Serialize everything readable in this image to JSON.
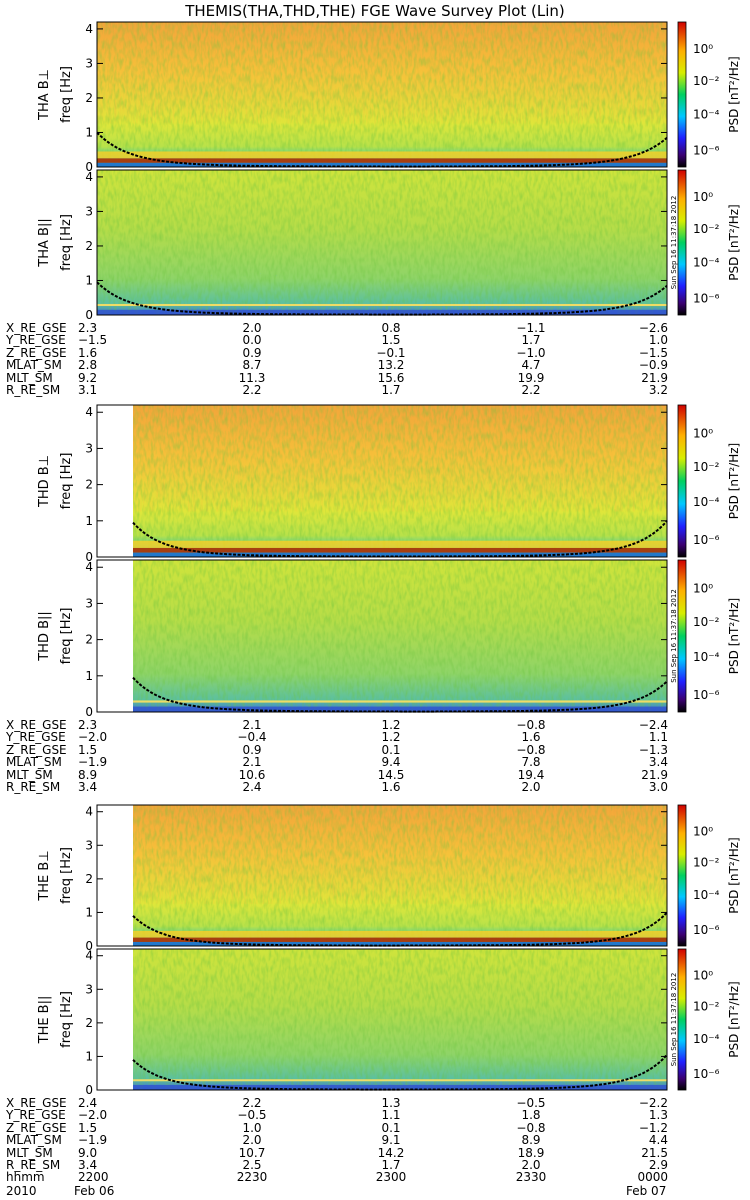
{
  "title": "THEMIS(THA,THD,THE) FGE Wave Survey Plot (Lin)",
  "colorbar": {
    "label": "PSD [nT²/Hz]",
    "ticks": [
      "10⁰",
      "10⁻²",
      "10⁻⁴",
      "10⁻⁶"
    ]
  },
  "stamp": "Sun Sep 16 11:37:18 2012",
  "panel_ylabel": "freq [Hz]",
  "yticks": [
    "0",
    "1",
    "2",
    "3",
    "4"
  ],
  "chart_data": [
    {
      "type": "heatmap",
      "panel": "THA B⊥",
      "ylabel": "freq [Hz]",
      "ylim": [
        0,
        4.2
      ],
      "yticks": [
        0,
        1,
        2,
        3,
        4
      ],
      "colorscale": "log PSD 1e-7 .. 1e1 nT^2/Hz",
      "gyro_curve": {
        "left_freq": 1.0,
        "right_freq": 0.85,
        "min_time_frac": 0.5
      }
    },
    {
      "type": "heatmap",
      "panel": "THA B||",
      "ylabel": "freq [Hz]",
      "ylim": [
        0,
        4.2
      ],
      "yticks": [
        0,
        1,
        2,
        3,
        4
      ],
      "gyro_curve": {
        "left_freq": 0.95,
        "right_freq": 0.85
      }
    },
    {
      "type": "heatmap",
      "panel": "THD B⊥",
      "ylabel": "freq [Hz]",
      "ylim": [
        0,
        4.2
      ],
      "yticks": [
        0,
        1,
        2,
        3,
        4
      ],
      "data_start_hhmm": "2206",
      "gyro_curve": {
        "left_freq": 0.95,
        "right_freq": 1.0
      }
    },
    {
      "type": "heatmap",
      "panel": "THD B||",
      "ylabel": "freq [Hz]",
      "ylim": [
        0,
        4.2
      ],
      "yticks": [
        0,
        1,
        2,
        3,
        4
      ],
      "data_start_hhmm": "2206",
      "gyro_curve": {
        "left_freq": 0.95,
        "right_freq": 0.85
      }
    },
    {
      "type": "heatmap",
      "panel": "THE B⊥",
      "ylabel": "freq [Hz]",
      "ylim": [
        0,
        4.2
      ],
      "yticks": [
        0,
        1,
        2,
        3,
        4
      ],
      "data_start_hhmm": "2206",
      "gyro_curve": {
        "left_freq": 0.9,
        "right_freq": 1.0
      }
    },
    {
      "type": "heatmap",
      "panel": "THE B||",
      "ylabel": "freq [Hz]",
      "ylim": [
        0,
        4.2
      ],
      "yticks": [
        0,
        1,
        2,
        3,
        4
      ],
      "data_start_hhmm": "2206",
      "gyro_curve": {
        "left_freq": 0.9,
        "right_freq": 1.05
      }
    }
  ],
  "probes": [
    {
      "labels": {
        "perp": "THA B⊥",
        "para": "THA B||"
      },
      "ephemeris": [
        {
          "name": "X_RE_GSE",
          "values": [
            "2.3",
            "2.0",
            "0.8",
            "−1.1",
            "−2.6"
          ]
        },
        {
          "name": "Y_RE_GSE",
          "values": [
            "−1.5",
            "0.0",
            "1.5",
            "1.7",
            "1.0"
          ]
        },
        {
          "name": "Z_RE_GSE",
          "values": [
            "1.6",
            "0.9",
            "−0.1",
            "−1.0",
            "−1.5"
          ]
        },
        {
          "name": "MLAT_SM",
          "values": [
            "2.8",
            "8.7",
            "13.2",
            "4.7",
            "−0.9"
          ]
        },
        {
          "name": "MLT_SM",
          "values": [
            "9.2",
            "11.3",
            "15.6",
            "19.9",
            "21.9"
          ]
        },
        {
          "name": "R_RE_SM",
          "values": [
            "3.1",
            "2.2",
            "1.7",
            "2.2",
            "3.2"
          ]
        }
      ]
    },
    {
      "labels": {
        "perp": "THD B⊥",
        "para": "THD B||"
      },
      "ephemeris": [
        {
          "name": "X_RE_GSE",
          "values": [
            "2.3",
            "2.1",
            "1.2",
            "−0.8",
            "−2.4"
          ]
        },
        {
          "name": "Y_RE_GSE",
          "values": [
            "−2.0",
            "−0.4",
            "1.2",
            "1.6",
            "1.1"
          ]
        },
        {
          "name": "Z_RE_GSE",
          "values": [
            "1.5",
            "0.9",
            "0.1",
            "−0.8",
            "−1.3"
          ]
        },
        {
          "name": "MLAT_SM",
          "values": [
            "−1.9",
            "2.1",
            "9.4",
            "7.8",
            "3.4"
          ]
        },
        {
          "name": "MLT_SM",
          "values": [
            "8.9",
            "10.6",
            "14.5",
            "19.4",
            "21.9"
          ]
        },
        {
          "name": "R_RE_SM",
          "values": [
            "3.4",
            "2.4",
            "1.6",
            "2.0",
            "3.0"
          ]
        }
      ]
    },
    {
      "labels": {
        "perp": "THE B⊥",
        "para": "THE B||"
      },
      "ephemeris": [
        {
          "name": "X_RE_GSE",
          "values": [
            "2.4",
            "2.2",
            "1.3",
            "−0.5",
            "−2.2"
          ]
        },
        {
          "name": "Y_RE_GSE",
          "values": [
            "−2.0",
            "−0.5",
            "1.1",
            "1.8",
            "1.3"
          ]
        },
        {
          "name": "Z_RE_GSE",
          "values": [
            "1.5",
            "1.0",
            "0.1",
            "−0.8",
            "−1.2"
          ]
        },
        {
          "name": "MLAT_SM",
          "values": [
            "−1.9",
            "2.0",
            "9.1",
            "8.9",
            "4.4"
          ]
        },
        {
          "name": "MLT_SM",
          "values": [
            "9.0",
            "10.7",
            "14.2",
            "18.9",
            "21.5"
          ]
        },
        {
          "name": "R_RE_SM",
          "values": [
            "3.4",
            "2.5",
            "1.7",
            "2.0",
            "2.9"
          ]
        },
        {
          "name": "hhmm",
          "values": [
            "2200",
            "2230",
            "2300",
            "2330",
            "0000"
          ]
        }
      ]
    }
  ],
  "date_left": {
    "year": "2010",
    "day": "Feb 06"
  },
  "date_right": "Feb 07",
  "colors": {
    "ridge": "#b03000",
    "band": "#1c6ccc",
    "curve": "#000000"
  }
}
